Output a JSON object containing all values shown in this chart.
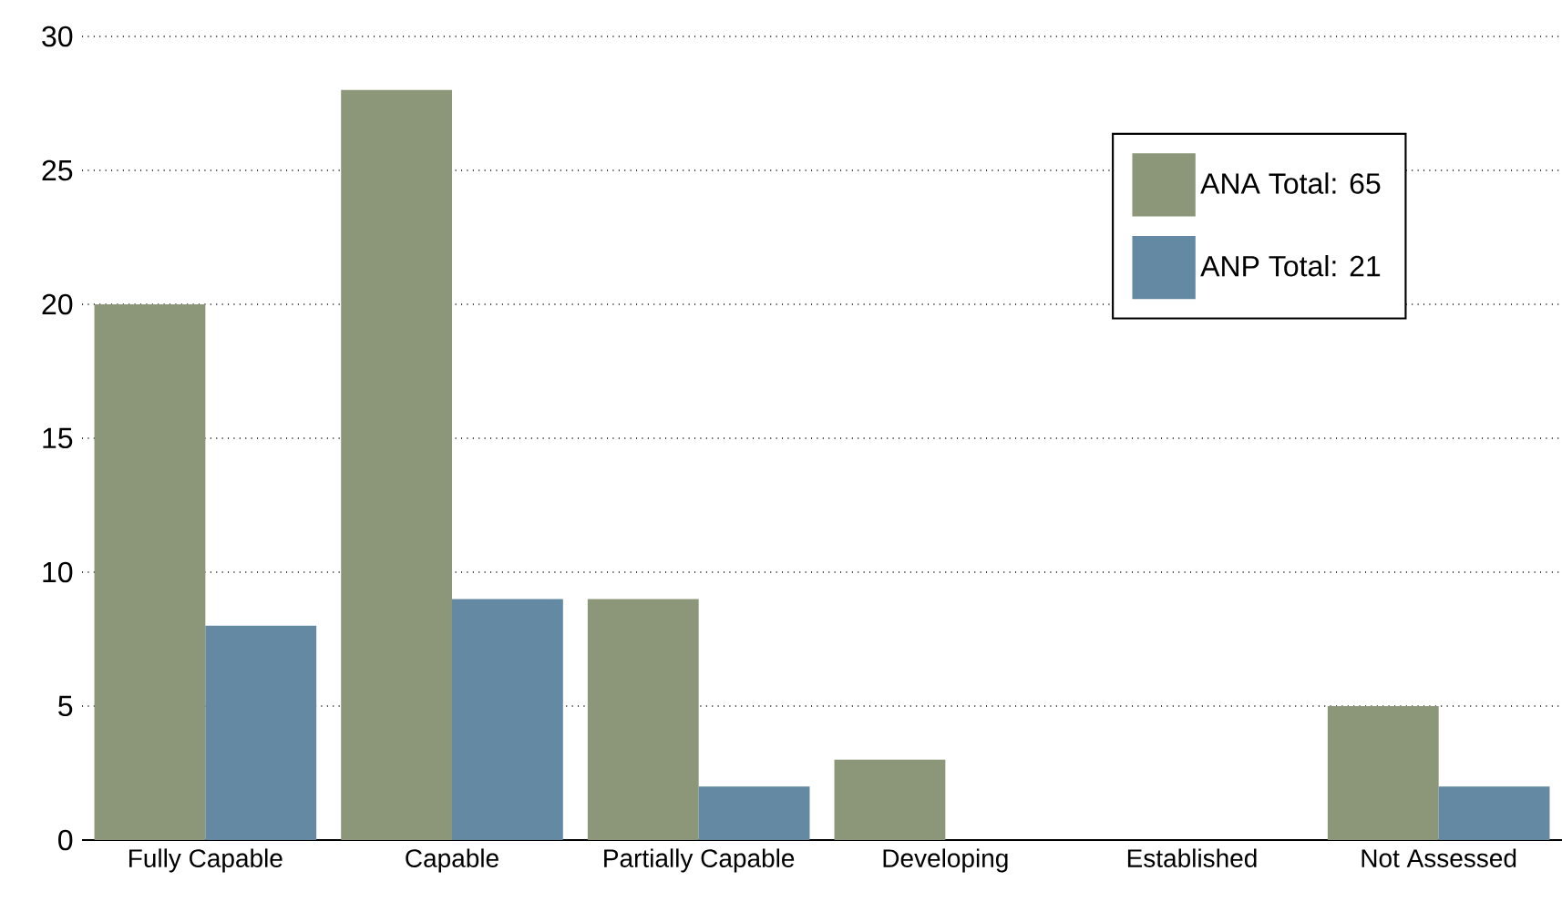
{
  "chart_data": {
    "type": "bar",
    "categories": [
      "Fully Capable",
      "Capable",
      "Partially Capable",
      "Developing",
      "Established",
      "Not Assessed"
    ],
    "series": [
      {
        "name": "ANA Total: 65",
        "color": "#8c977a",
        "values": [
          20,
          28,
          9,
          3,
          0,
          5
        ]
      },
      {
        "name": "ANP Total: 21",
        "color": "#6389a3",
        "values": [
          8,
          9,
          2,
          0,
          0,
          2
        ]
      }
    ],
    "ylim": [
      0,
      30
    ],
    "yticks": [
      0,
      5,
      10,
      15,
      20,
      25,
      30
    ],
    "grid": "y",
    "legend": "top right"
  }
}
